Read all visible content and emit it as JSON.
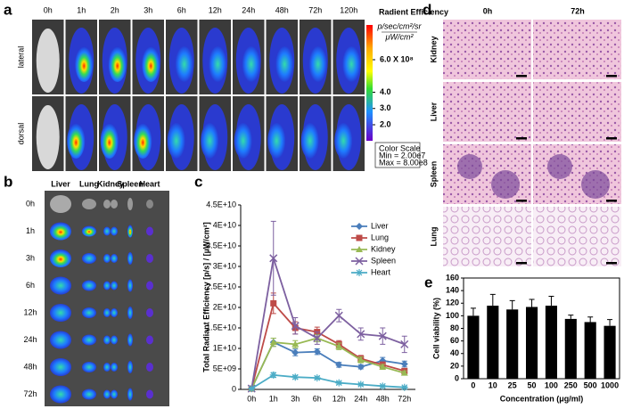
{
  "panel_a": {
    "letter": "a",
    "times": [
      "0h",
      "1h",
      "2h",
      "3h",
      "6h",
      "12h",
      "24h",
      "48h",
      "72h",
      "120h"
    ],
    "rows": [
      "lateral",
      "dorsal"
    ],
    "colorbar_title": "Radient Efficiency",
    "colorbar_unit": [
      "p/sec/cm²/sr",
      "μW/cm²"
    ],
    "colorbar_ticks": [
      {
        "value": 6.0,
        "label": "6.0 X 10⁸"
      },
      {
        "value": 4.0,
        "label": "4.0"
      },
      {
        "value": 3.0,
        "label": "3.0"
      },
      {
        "value": 2.0,
        "label": "2.0"
      }
    ],
    "color_scale": [
      "Color Scale",
      "Min = 2.00e7",
      "Max = 8.00e8"
    ]
  },
  "panel_b": {
    "letter": "b",
    "organs": [
      "Liver",
      "Lung",
      "Kidney",
      "Spleen",
      "Heart"
    ],
    "times": [
      "0h",
      "1h",
      "3h",
      "6h",
      "12h",
      "24h",
      "48h",
      "72h"
    ]
  },
  "panel_d": {
    "letter": "d",
    "columns": [
      "0h",
      "72h"
    ],
    "rows": [
      "Kidney",
      "Liver",
      "Spleen",
      "Lung"
    ]
  },
  "chart_data": [
    {
      "type": "line",
      "letter": "c",
      "ylabel": "Total Radiant Efficiency [p/s] / [µW/cm²]",
      "categories": [
        "0h",
        "1h",
        "3h",
        "6h",
        "12h",
        "24h",
        "48h",
        "72h"
      ],
      "ylim": [
        0,
        45000000000
      ],
      "yticks": [
        0,
        {
          "value": 5000000000,
          "label": "5E+09"
        },
        {
          "value": 10000000000,
          "label": "1E+10"
        },
        {
          "value": 15000000000,
          "label": "1.5E+10"
        },
        {
          "value": 20000000000,
          "label": "2E+10"
        },
        {
          "value": 25000000000,
          "label": "2.5E+10"
        },
        {
          "value": 30000000000,
          "label": "3E+10"
        },
        {
          "value": 35000000000,
          "label": "3.5E+10"
        },
        {
          "value": 40000000000,
          "label": "4E+10"
        },
        {
          "value": 45000000000,
          "label": "4.5E+10"
        }
      ],
      "series": [
        {
          "name": "Liver",
          "color": "#4a7ebb",
          "marker": "diamond",
          "values": [
            200000000,
            11500000000,
            9000000000,
            9200000000,
            6000000000,
            5500000000,
            7000000000,
            6200000000
          ],
          "errors": [
            100000000,
            1000000000,
            800000000,
            700000000,
            600000000,
            500000000,
            800000000,
            700000000
          ]
        },
        {
          "name": "Lung",
          "color": "#be4b48",
          "marker": "square",
          "values": [
            200000000,
            21000000000,
            15000000000,
            14000000000,
            11000000000,
            7500000000,
            6000000000,
            4500000000
          ],
          "errors": [
            100000000,
            2500000000,
            1500000000,
            1200000000,
            900000000,
            800000000,
            700000000,
            600000000
          ]
        },
        {
          "name": "Kidney",
          "color": "#98b954",
          "marker": "triangle",
          "values": [
            200000000,
            11500000000,
            11000000000,
            12500000000,
            10500000000,
            7200000000,
            5500000000,
            4000000000
          ],
          "errors": [
            100000000,
            1000000000,
            900000000,
            900000000,
            800000000,
            700000000,
            600000000,
            500000000
          ]
        },
        {
          "name": "Spleen",
          "color": "#7d60a0",
          "marker": "x",
          "values": [
            200000000,
            32000000000,
            15500000000,
            12500000000,
            18000000000,
            13500000000,
            13000000000,
            11000000000
          ],
          "errors": [
            100000000,
            9000000000,
            2000000000,
            1500000000,
            1500000000,
            1500000000,
            2000000000,
            2000000000
          ]
        },
        {
          "name": "Heart",
          "color": "#4bacc6",
          "marker": "star",
          "values": [
            200000000,
            3500000000,
            3000000000,
            2800000000,
            1600000000,
            1200000000,
            800000000,
            500000000
          ],
          "errors": [
            100000000,
            600000000,
            400000000,
            300000000,
            300000000,
            200000000,
            200000000,
            200000000
          ]
        }
      ]
    },
    {
      "type": "bar",
      "letter": "e",
      "ylabel": "Cell viability (%)",
      "xlabel": "Concentration (μg/ml)",
      "color": "#000000",
      "categories": [
        "0",
        "10",
        "25",
        "50",
        "100",
        "250",
        "500",
        "1000"
      ],
      "values": [
        100,
        116,
        110,
        114,
        116,
        95,
        90,
        84
      ],
      "errors": [
        12,
        18,
        14,
        12,
        15,
        6,
        8,
        10
      ],
      "ylim": [
        0,
        160
      ],
      "yticks": [
        0,
        20,
        40,
        60,
        80,
        100,
        120,
        140,
        160
      ]
    }
  ]
}
